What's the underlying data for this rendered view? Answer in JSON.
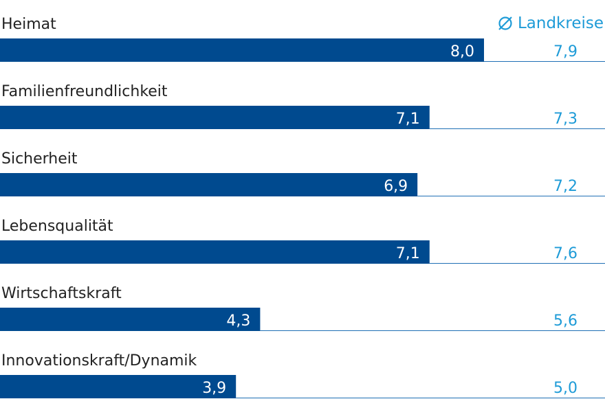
{
  "legend": {
    "symbol": "Ø",
    "label": "Landkreise"
  },
  "colors": {
    "bar": "#004a8f",
    "comparison": "#1e9bd7",
    "separator": "#1e6fb5",
    "text": "#222222"
  },
  "chart_data": {
    "type": "bar",
    "orientation": "horizontal",
    "categories": [
      "Heimat",
      "Familienfreundlichkeit",
      "Sicherheit",
      "Lebensqualität",
      "Wirtschaftskraft",
      "Innovationskraft/Dynamik"
    ],
    "values": [
      8.0,
      7.1,
      6.9,
      7.1,
      4.3,
      3.9
    ],
    "value_labels": [
      "8,0",
      "7,1",
      "6,9",
      "7,1",
      "4,3",
      "3,9"
    ],
    "comparison": {
      "name": "Ø Landkreise",
      "values": [
        7.9,
        7.3,
        7.2,
        7.6,
        5.6,
        5.0
      ],
      "labels": [
        "7,9",
        "7,3",
        "7,2",
        "7,6",
        "5,6",
        "5,0"
      ]
    },
    "xlim": [
      0,
      10
    ],
    "grid": false
  }
}
